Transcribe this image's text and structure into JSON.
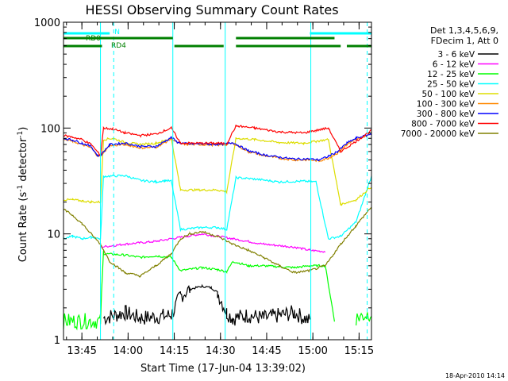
{
  "chart_data": {
    "type": "line",
    "title": "HESSI Observing Summary Count Rates",
    "xlabel": "Start Time (17-Jun-04 13:39:02)",
    "ylabel_main": "Count Rate (s",
    "ylabel_sup1": "-1",
    "ylabel_mid": " detector",
    "ylabel_sup2": "-1",
    "ylabel_end": ")",
    "yscale": "log",
    "ylim": [
      1,
      1000
    ],
    "xlim_minutes": [
      0,
      100
    ],
    "x_ticks": [
      {
        "label": "13:45",
        "minute": 5.97
      },
      {
        "label": "14:00",
        "minute": 20.97
      },
      {
        "label": "14:15",
        "minute": 35.97
      },
      {
        "label": "14:30",
        "minute": 50.97
      },
      {
        "label": "14:45",
        "minute": 65.97
      },
      {
        "label": "15:00",
        "minute": 80.97
      },
      {
        "label": "15:15",
        "minute": 95.97
      }
    ],
    "y_ticks": [
      {
        "label": "1",
        "value": 1
      },
      {
        "label": "10",
        "value": 10
      },
      {
        "label": "100",
        "value": 100
      },
      {
        "label": "1000",
        "value": 1000
      }
    ],
    "legend_header": [
      "Det 1,3,4,5,6,9,",
      "FDecim 1, Att 0"
    ],
    "series": [
      {
        "name": "3 - 6 keV",
        "color": "#000000",
        "x": [
          0,
          12,
          13,
          20,
          25,
          35,
          38,
          41,
          45,
          48,
          50,
          53,
          55,
          60,
          65,
          75,
          80,
          85,
          95,
          100
        ],
        "y": [
          null,
          null,
          1.6,
          1.8,
          1.6,
          1.7,
          2.6,
          3.0,
          3.2,
          3.1,
          2.8,
          1.8,
          1.6,
          1.7,
          1.6,
          1.8,
          1.5,
          null,
          null,
          null
        ]
      },
      {
        "name": "6 - 12 keV",
        "color": "#ff00ff",
        "x": [
          12,
          20,
          30,
          35,
          45,
          50,
          55,
          65,
          75,
          80,
          85
        ],
        "y": [
          7.5,
          8.0,
          8.5,
          9.0,
          10.0,
          9.5,
          9.0,
          8.0,
          7.5,
          7.0,
          6.8
        ]
      },
      {
        "name": "12 - 25 keV",
        "color": "#00ff00",
        "x": [
          0,
          12,
          13,
          20,
          25,
          30,
          35,
          38,
          45,
          50,
          53,
          55,
          60,
          65,
          75,
          80,
          85,
          88,
          90,
          95,
          100
        ],
        "y": [
          1.5,
          1.5,
          6.5,
          6.3,
          6.0,
          6.2,
          6.0,
          4.5,
          4.8,
          4.6,
          4.4,
          5.5,
          5.0,
          5.0,
          4.8,
          5.0,
          5.0,
          1.5,
          null,
          1.6,
          1.8
        ]
      },
      {
        "name": "25 - 50 keV",
        "color": "#00ffff",
        "x": [
          0,
          3,
          6,
          9,
          12,
          13,
          20,
          25,
          30,
          33,
          35,
          38,
          45,
          50,
          53,
          56,
          62,
          70,
          78,
          82,
          86,
          90,
          95,
          100
        ],
        "y": [
          9.0,
          9.5,
          9.0,
          9.3,
          9.0,
          35.0,
          35.5,
          32.0,
          31.0,
          32.0,
          31.5,
          11.0,
          11.5,
          11.5,
          11.0,
          34.0,
          33.0,
          31.0,
          31.5,
          31.0,
          9.0,
          9.5,
          13.0,
          35.0
        ]
      },
      {
        "name": "50 - 100 keV",
        "color": "#dddd00",
        "x": [
          0,
          3,
          6,
          9,
          12,
          13,
          16,
          20,
          25,
          30,
          33,
          35,
          38,
          45,
          50,
          53,
          56,
          62,
          70,
          78,
          82,
          86,
          90,
          95,
          100
        ],
        "y": [
          21.0,
          21.0,
          20.5,
          20.0,
          20.0,
          78.0,
          80.0,
          73.0,
          70.0,
          72.0,
          76.0,
          80.0,
          26.0,
          26.0,
          26.0,
          25.0,
          80.0,
          78.0,
          73.0,
          72.0,
          75.0,
          78.0,
          19.0,
          21.0,
          28.0
        ]
      },
      {
        "name": "100 - 300 keV",
        "color": "#ff8800",
        "x": [
          0,
          3,
          6,
          9,
          11,
          12,
          15,
          20,
          25,
          30,
          33,
          35,
          37,
          40,
          45,
          50,
          53,
          55,
          60,
          65,
          70,
          75,
          80,
          83,
          86,
          89,
          92,
          95,
          100
        ],
        "y": [
          78.0,
          75.0,
          70.0,
          65.0,
          55.0,
          55.0,
          68.0,
          70.0,
          65.0,
          66.0,
          73.0,
          80.0,
          72.0,
          70.0,
          70.0,
          69.0,
          70.0,
          72.0,
          60.0,
          55.0,
          52.0,
          50.0,
          50.0,
          49.0,
          52.0,
          58.0,
          70.0,
          78.0,
          88.0
        ]
      },
      {
        "name": "300 - 800 keV",
        "color": "#0000ff",
        "x": [
          0,
          3,
          6,
          9,
          11,
          12,
          15,
          20,
          25,
          30,
          33,
          35,
          37,
          40,
          45,
          50,
          53,
          55,
          60,
          65,
          70,
          75,
          80,
          83,
          86,
          89,
          92,
          95,
          100
        ],
        "y": [
          80.0,
          77.0,
          72.0,
          67.0,
          55.0,
          55.0,
          70.0,
          72.0,
          67.0,
          67.0,
          75.0,
          82.0,
          73.0,
          71.0,
          71.0,
          70.0,
          71.0,
          73.0,
          61.0,
          56.0,
          53.0,
          51.0,
          51.0,
          50.0,
          54.0,
          60.0,
          72.0,
          80.0,
          88.0
        ]
      },
      {
        "name": "800 - 7000 keV",
        "color": "#ff0000",
        "x": [
          0,
          3,
          6,
          9,
          12,
          13,
          16,
          20,
          25,
          30,
          33,
          35,
          38,
          45,
          50,
          53,
          56,
          62,
          70,
          78,
          82,
          86,
          90,
          95,
          100
        ],
        "y": [
          85.0,
          82.0,
          78.0,
          70.0,
          55.0,
          100.0,
          98.0,
          90.0,
          85.0,
          88.0,
          95.0,
          100.0,
          72.0,
          72.0,
          72.0,
          71.0,
          105.0,
          100.0,
          92.0,
          90.0,
          95.0,
          100.0,
          60.0,
          75.0,
          95.0
        ]
      },
      {
        "name": "7000 - 20000 keV",
        "color": "#808000",
        "x": [
          0,
          3,
          6,
          9,
          12,
          15,
          20,
          25,
          30,
          35,
          38,
          41,
          45,
          50,
          55,
          60,
          65,
          70,
          75,
          80,
          85,
          90,
          95,
          100
        ],
        "y": [
          17.0,
          15.0,
          12.5,
          10.0,
          8.0,
          5.5,
          4.3,
          4.0,
          5.0,
          6.5,
          9.0,
          10.0,
          10.5,
          9.5,
          8.0,
          7.0,
          6.0,
          5.0,
          4.3,
          4.5,
          5.0,
          8.0,
          12.0,
          18.0
        ]
      }
    ],
    "overlays": {
      "N_label": "N",
      "RD0_label": "RD0",
      "RD4_label": "RD4",
      "N_color": "#00ffff",
      "RD_color": "#008000",
      "N_segments_minutes": [
        [
          0,
          15.0
        ],
        [
          80.0,
          100
        ]
      ],
      "RD0_segments_minutes": [
        [
          0,
          35.5
        ],
        [
          56.0,
          88.0
        ]
      ],
      "RD4_segments_minutes": [
        [
          0,
          12.5
        ],
        [
          36.0,
          52.0
        ],
        [
          56.0,
          90.0
        ],
        [
          92.0,
          100
        ]
      ],
      "solid_lines_minutes": [
        12.0,
        35.5,
        52.5,
        80.3
      ],
      "dashed_lines_minutes": [
        16.3,
        98.6
      ]
    },
    "grid": false,
    "legend_position": "right"
  },
  "footer_date": "18-Apr-2010 14:14"
}
